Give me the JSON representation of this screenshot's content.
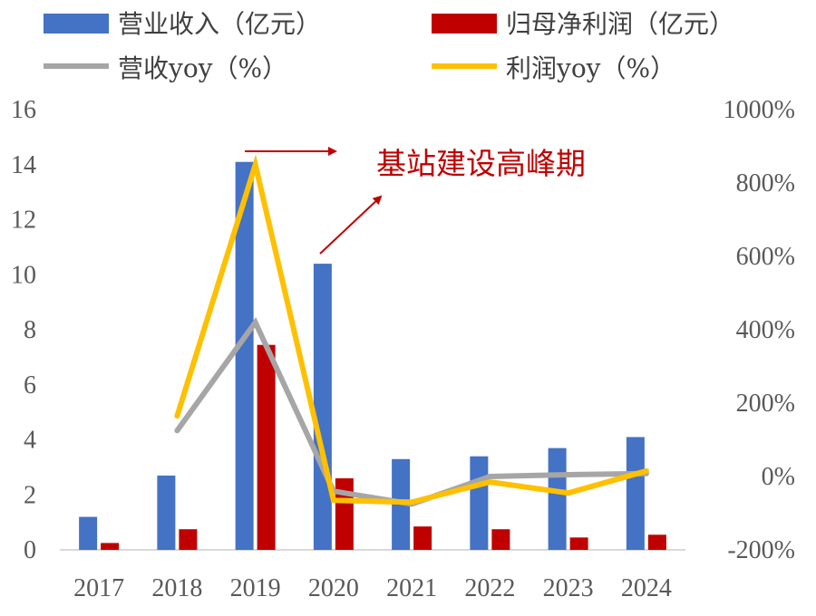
{
  "chart_data": {
    "type": "bar",
    "categories": [
      "2017",
      "2018",
      "2019",
      "2020",
      "2021",
      "2022",
      "2023",
      "2024"
    ],
    "series": [
      {
        "name": "营业收入（亿元）",
        "type": "bar",
        "axis": "left",
        "color": "#4472c4",
        "values": [
          1.2,
          2.7,
          14.1,
          10.4,
          3.3,
          3.4,
          3.7,
          4.1
        ]
      },
      {
        "name": "归母净利润（亿元）",
        "type": "bar",
        "axis": "left",
        "color": "#c00000",
        "values": [
          0.25,
          0.75,
          7.45,
          2.6,
          0.85,
          0.75,
          0.45,
          0.55
        ]
      },
      {
        "name": "营收yoy（%）",
        "type": "line",
        "axis": "right",
        "color": "#a6a6a6",
        "values": [
          null,
          125,
          420,
          -40,
          -75,
          0,
          5,
          8
        ]
      },
      {
        "name": "利润yoy（%）",
        "type": "line",
        "axis": "right",
        "color": "#ffc000",
        "values": [
          null,
          165,
          850,
          -65,
          -70,
          -15,
          -45,
          15
        ]
      }
    ],
    "left_axis": {
      "min": 0,
      "max": 16,
      "ticks": [
        "0",
        "2",
        "4",
        "6",
        "8",
        "10",
        "12",
        "14",
        "16"
      ]
    },
    "right_axis": {
      "min": -200,
      "max": 1000,
      "ticks": [
        "-200%",
        "0%",
        "200%",
        "400%",
        "600%",
        "800%",
        "1000%"
      ]
    },
    "annotation": {
      "text": "基站建设高峰期",
      "color": "#c00000"
    },
    "grid": false,
    "legend": "top"
  }
}
